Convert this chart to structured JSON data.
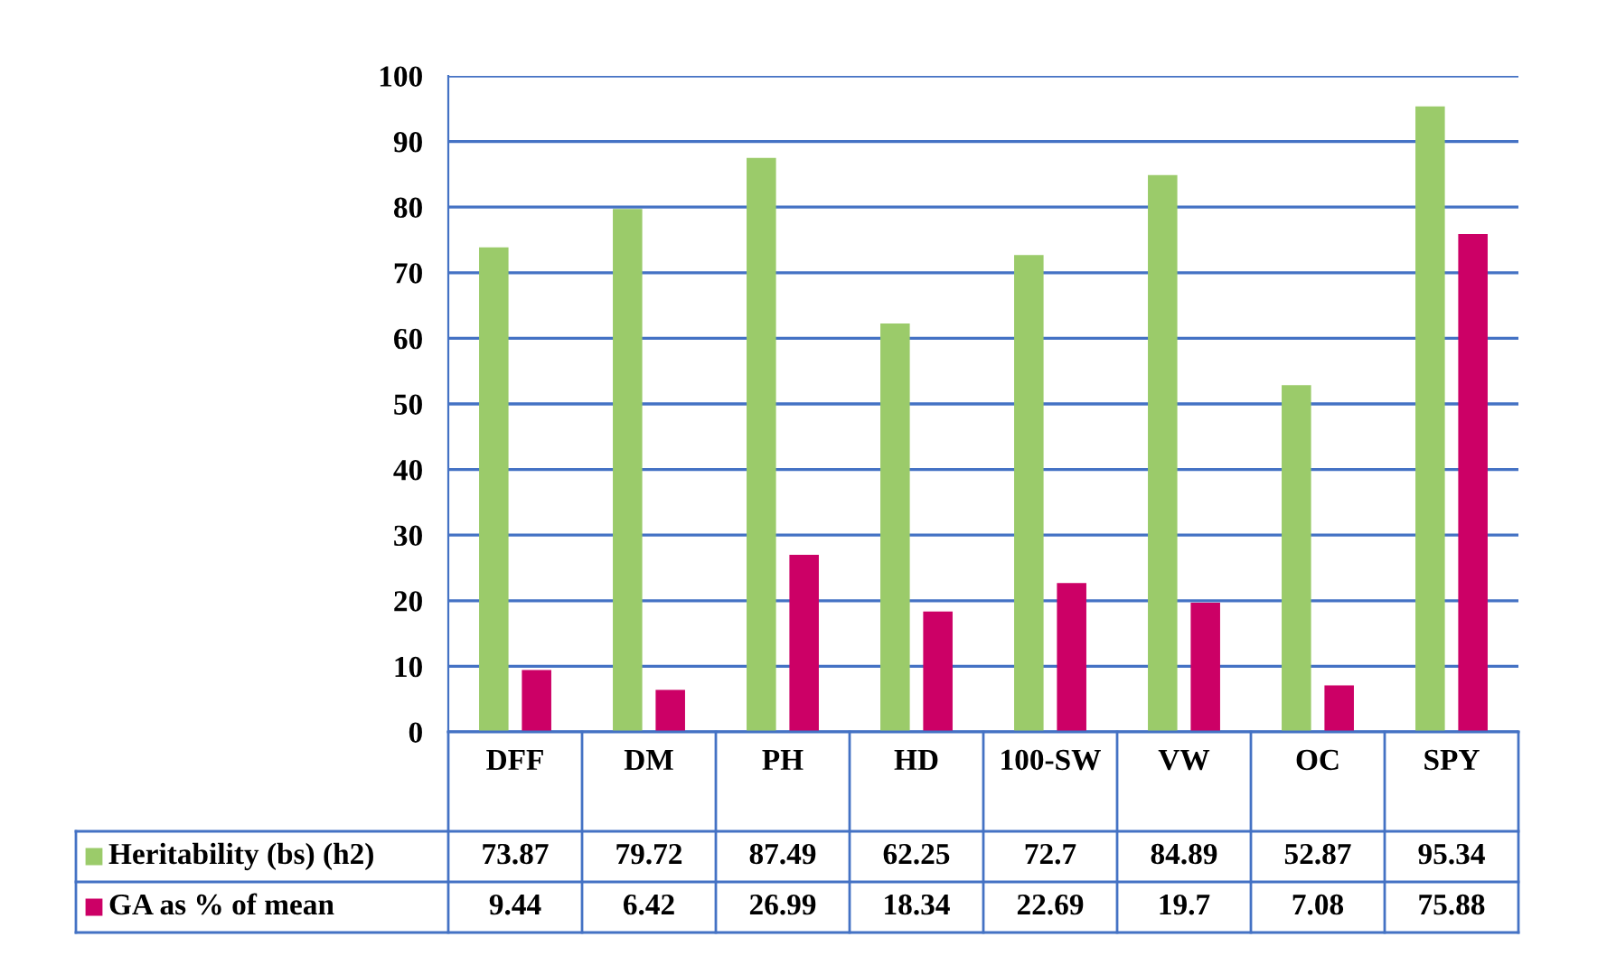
{
  "chart_data": {
    "type": "bar",
    "categories": [
      "DFF",
      "DM",
      "PH",
      "HD",
      "100-SW",
      "VW",
      "OC",
      "SPY"
    ],
    "series": [
      {
        "name": "Heritability (bs) (h2)",
        "color": "#9bcb6a",
        "values": [
          73.87,
          79.72,
          87.49,
          62.25,
          72.7,
          84.89,
          52.87,
          95.34
        ]
      },
      {
        "name": "GA as % of mean",
        "color": "#cc0066",
        "values": [
          9.44,
          6.42,
          26.99,
          18.34,
          22.69,
          19.7,
          7.08,
          75.88
        ]
      }
    ],
    "ylim": [
      0,
      100
    ],
    "yticks": [
      0,
      10,
      20,
      30,
      40,
      50,
      60,
      70,
      80,
      90,
      100
    ],
    "grid": "y",
    "data_labels": true,
    "legend": "bottom"
  }
}
